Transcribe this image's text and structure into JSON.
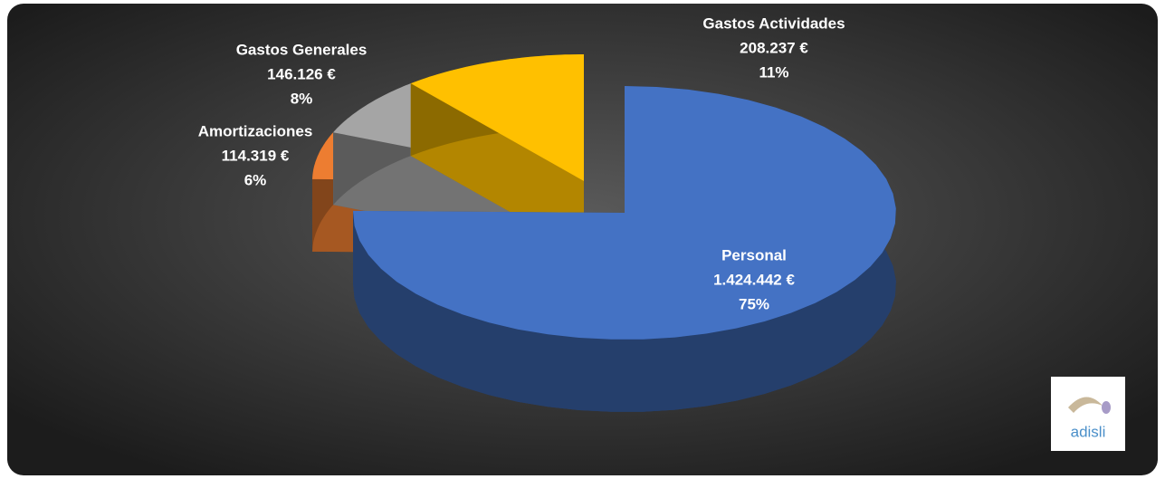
{
  "chart_data": {
    "type": "pie",
    "categories": [
      "Personal",
      "Amortizaciones",
      "Gastos Generales",
      "Gastos Actividades"
    ],
    "values": [
      1424442,
      114319,
      146126,
      208237
    ],
    "value_labels": [
      "1.424.442 €",
      "114.319 €",
      "146.126 €",
      "208.237 €"
    ],
    "percent_labels": [
      "75%",
      "6%",
      "8%",
      "11%"
    ],
    "colors": [
      "#4472c4",
      "#ed7d31",
      "#a5a5a5",
      "#ffc000"
    ],
    "logo": "adisli"
  }
}
